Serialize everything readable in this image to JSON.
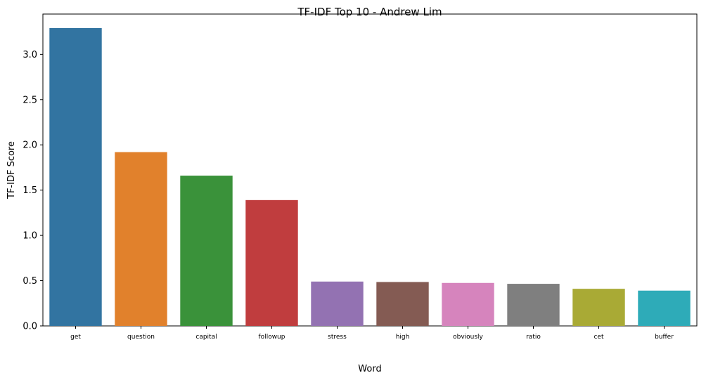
{
  "chart_data": {
    "type": "bar",
    "title": "TF-IDF Top 10 - Andrew Lim",
    "xlabel": "Word",
    "ylabel": "TF-IDF Score",
    "categories": [
      "get",
      "question",
      "capital",
      "followup",
      "stress",
      "high",
      "obviously",
      "ratio",
      "cet",
      "buffer"
    ],
    "values": [
      3.29,
      1.92,
      1.66,
      1.39,
      0.49,
      0.485,
      0.475,
      0.465,
      0.41,
      0.39
    ],
    "colors": [
      "#3274a1",
      "#e1812c",
      "#3a923a",
      "#c03d3e",
      "#9372b2",
      "#845b53",
      "#d684bd",
      "#7f7f7f",
      "#a9aa35",
      "#2eabb8"
    ],
    "ylim": [
      0,
      3.445
    ],
    "yticks": [
      0.0,
      0.5,
      1.0,
      1.5,
      2.0,
      2.5,
      3.0
    ],
    "ytick_labels": [
      "0.0",
      "0.5",
      "1.0",
      "1.5",
      "2.0",
      "2.5",
      "3.0"
    ],
    "grid": false,
    "legend": "none"
  }
}
